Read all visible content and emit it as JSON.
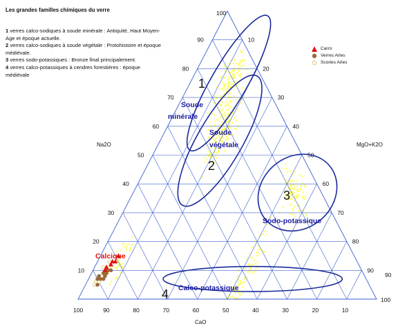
{
  "title": "Les grandes familles chimiques du verre",
  "families": [
    {
      "num": "1",
      "text": " verres calco-sodiques à soude minérale : Antiquité, Haut Moyen-Age et époque actuelle."
    },
    {
      "num": "2",
      "text": " verres calco-sodiques à soude végétale : Protohistoire et époque médiévale."
    },
    {
      "num": "3",
      "text": " verres sodo-potassiques : Bronze final principalement."
    },
    {
      "num": "4",
      "text": " verres calco-potassiques à cendres forestières : époque médiévale"
    }
  ],
  "legend": [
    {
      "label": "Carro",
      "symbol": "triangle",
      "color": "#e01010"
    },
    {
      "label": "Verres Arles",
      "symbol": "dot",
      "color": "#9a6a3a"
    },
    {
      "label": "Scories Arles",
      "symbol": "circle",
      "color": "#f2e7a0"
    }
  ],
  "colors": {
    "grid": "#3a5fcd",
    "ellipse": "#1a2a9a",
    "cloud": "#ffff66",
    "label": "#1a1aa0",
    "calcique": "#e01010"
  },
  "chart_data": {
    "type": "scatter",
    "subtype": "ternary",
    "axes": {
      "left": "Na2O",
      "right": "MgO+K2O",
      "bottom": "CaO"
    },
    "ticks": [
      "10",
      "20",
      "30",
      "40",
      "50",
      "60",
      "70",
      "80",
      "90",
      "100"
    ],
    "top_label": "100",
    "grid": true,
    "regions": [
      {
        "num": "1",
        "name": "Soude minérale",
        "center": {
          "CaO": 12,
          "MgO+K2O": 13
        },
        "semi_axes": [
          26,
          6
        ],
        "angle": 60
      },
      {
        "num": "2",
        "name": "Soude végétale",
        "center": {
          "CaO": 25,
          "MgO+K2O": 20
        },
        "semi_axes": [
          25,
          7.5
        ],
        "angle": 60
      },
      {
        "num": "3",
        "name": "Sodo-potassique",
        "center": {
          "CaO": 8,
          "MgO+K2O": 55
        },
        "semi_axes": [
          14,
          12
        ],
        "angle": 40
      },
      {
        "num": "4",
        "name": "Calco-potassique",
        "center": {
          "CaO": 38,
          "MgO+K2O": 55
        },
        "semi_axes": [
          30,
          4.2
        ],
        "angle": 0
      }
    ],
    "extra_label": "Calcique",
    "series": [
      {
        "name": "Carro",
        "points": [
          [
            86,
            4
          ],
          [
            85,
            4
          ],
          [
            83,
            5
          ],
          [
            82,
            5
          ],
          [
            81,
            6
          ],
          [
            79,
            6
          ]
        ]
      },
      {
        "name": "Verres Arles",
        "points": [
          [
            91,
            4
          ],
          [
            90,
            3
          ],
          [
            89,
            4
          ],
          [
            88,
            5
          ],
          [
            87,
            4
          ],
          [
            86,
            5
          ],
          [
            85,
            5
          ],
          [
            84,
            6
          ],
          [
            89,
            3
          ],
          [
            87,
            5
          ]
        ]
      },
      {
        "name": "Scories Arles",
        "points": [
          [
            92,
            3
          ],
          [
            91,
            3
          ],
          [
            90,
            4
          ],
          [
            88,
            4
          ],
          [
            86,
            3
          ],
          [
            84,
            5
          ],
          [
            83,
            4
          ]
        ]
      }
    ],
    "cloud_clusters": [
      {
        "c": [
          12,
          13
        ],
        "spread": [
          9,
          3
        ],
        "n": 120
      },
      {
        "c": [
          22,
          19
        ],
        "spread": [
          11,
          4
        ],
        "n": 140
      },
      {
        "c": [
          9,
          54
        ],
        "spread": [
          5,
          7
        ],
        "n": 90
      },
      {
        "c": [
          45,
          52
        ],
        "spread": [
          20,
          3
        ],
        "n": 120
      },
      {
        "c": [
          78,
          8
        ],
        "spread": [
          8,
          3
        ],
        "n": 40
      }
    ]
  }
}
